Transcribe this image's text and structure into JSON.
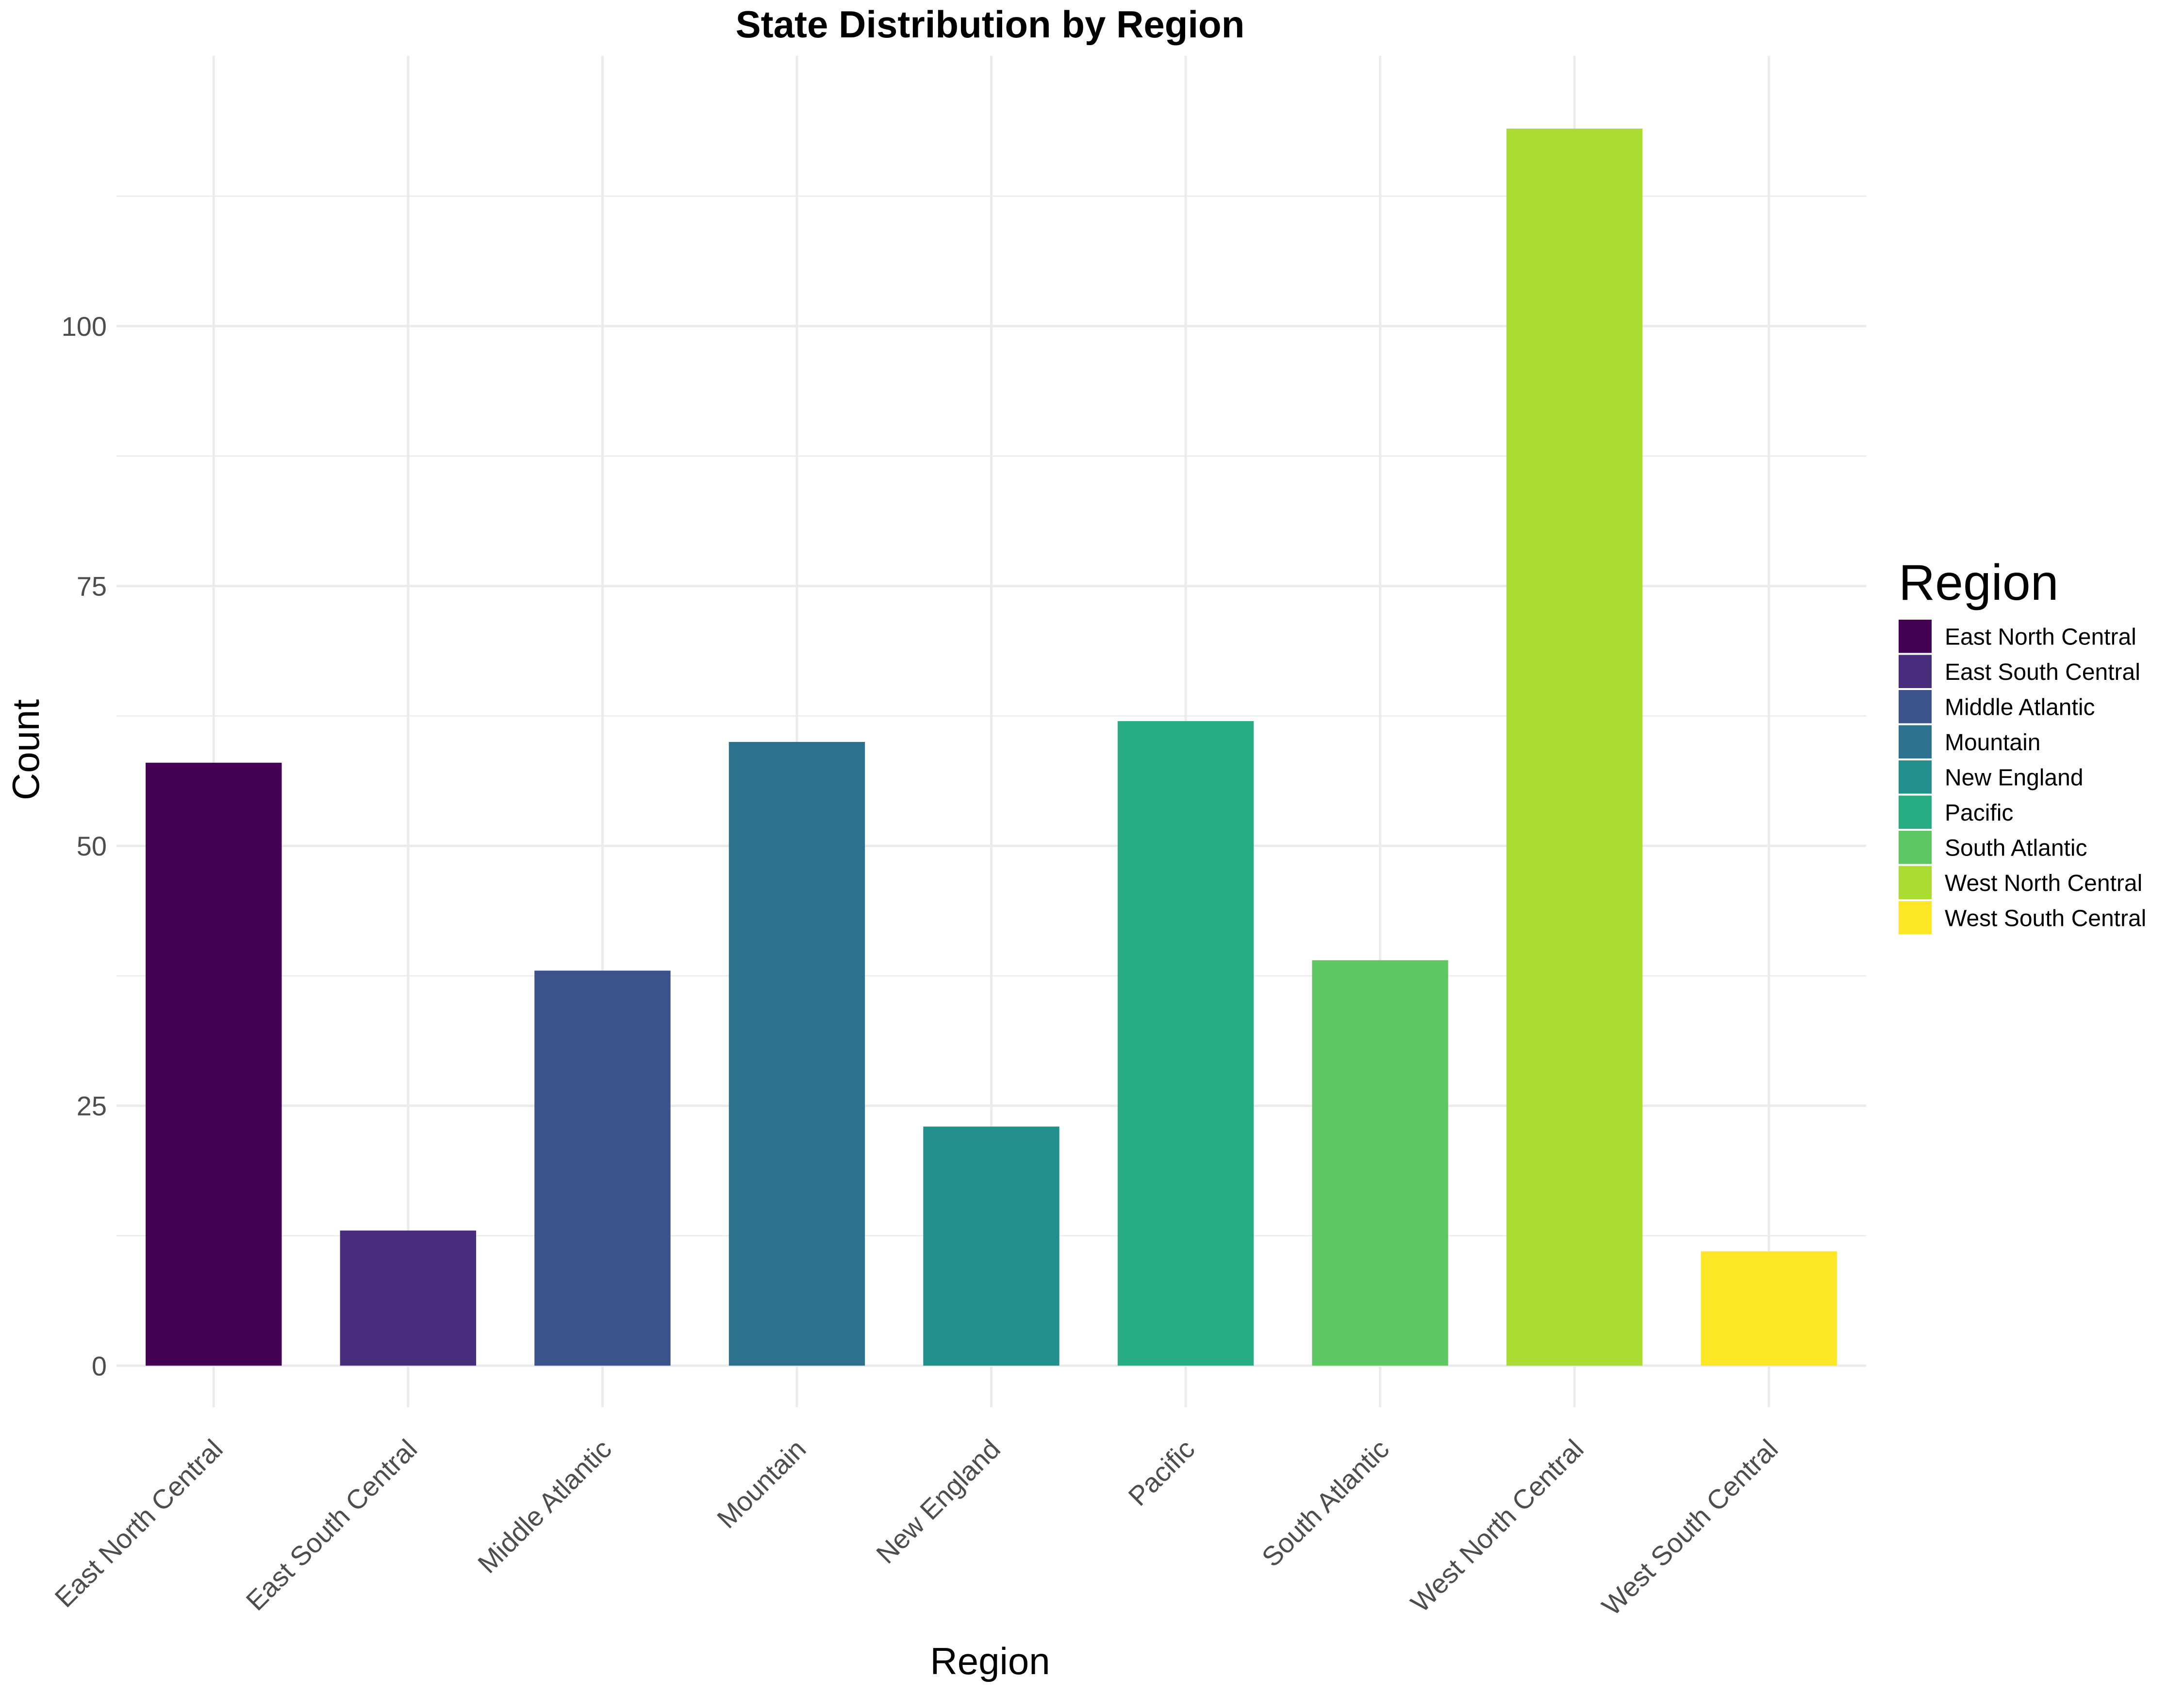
{
  "chart_data": {
    "type": "bar",
    "title": "State Distribution by Region",
    "xlabel": "Region",
    "ylabel": "Count",
    "categories": [
      "East North Central",
      "East South Central",
      "Middle Atlantic",
      "Mountain",
      "New England",
      "Pacific",
      "South Atlantic",
      "West North Central",
      "West South Central"
    ],
    "values": [
      58,
      13,
      38,
      60,
      23,
      62,
      39,
      119,
      11
    ],
    "colors": [
      "#440154",
      "#472D7B",
      "#3B528B",
      "#2C728E",
      "#21908C",
      "#27AD81",
      "#5DC863",
      "#AADC32",
      "#FDE725"
    ],
    "yticks": [
      0,
      25,
      50,
      75,
      100
    ],
    "ylim": [
      -4,
      126
    ],
    "grid": true,
    "legend": {
      "title": "Region",
      "position": "right"
    }
  }
}
